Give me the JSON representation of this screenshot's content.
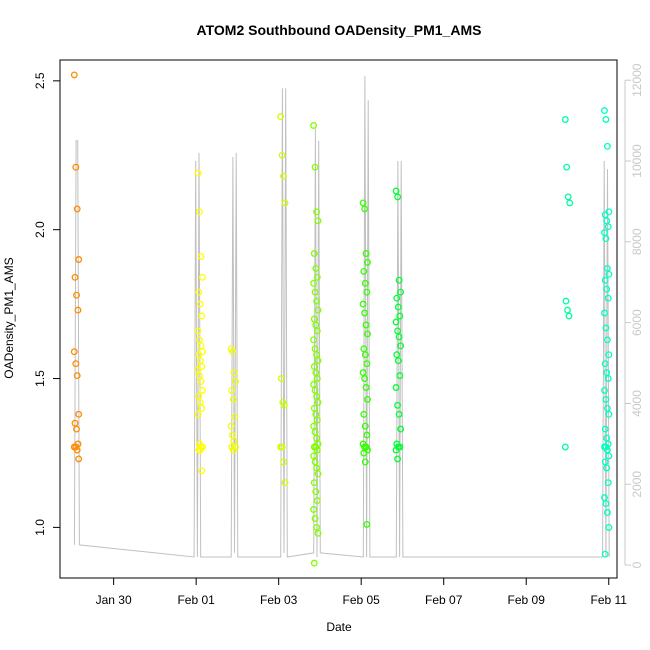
{
  "chart_data": {
    "type": "scatter",
    "title": "ATOM2 Southbound OADensity_PM1_AMS",
    "xlabel": "Date",
    "ylabel": "OADensity_PM1_AMS",
    "x_range_days": [
      28.7,
      42.2
    ],
    "x_axis_origin": "2017-01-01",
    "x_ticks": [
      {
        "day": 30,
        "label": "Jan 30"
      },
      {
        "day": 32,
        "label": "Feb 01"
      },
      {
        "day": 34,
        "label": "Feb 03"
      },
      {
        "day": 36,
        "label": "Feb 05"
      },
      {
        "day": 38,
        "label": "Feb 07"
      },
      {
        "day": 40,
        "label": "Feb 09"
      },
      {
        "day": 42,
        "label": "Feb 11"
      }
    ],
    "ylim": [
      0.83,
      2.57
    ],
    "y_ticks": [
      {
        "value": 1.0,
        "label": "1.0"
      },
      {
        "value": 1.5,
        "label": "1.5"
      },
      {
        "value": 2.0,
        "label": "2.0"
      },
      {
        "value": 2.5,
        "label": "2.5"
      }
    ],
    "y2lim": [
      -320,
      12500
    ],
    "y2_ticks": [
      {
        "value": 0,
        "label": "0"
      },
      {
        "value": 2000,
        "label": "2000"
      },
      {
        "value": 4000,
        "label": "4000"
      },
      {
        "value": 6000,
        "label": "6000"
      },
      {
        "value": 8000,
        "label": "8000"
      },
      {
        "value": 10000,
        "label": "10000"
      },
      {
        "value": 12000,
        "label": "12000"
      }
    ],
    "grid": false,
    "points": [
      {
        "x": 29.1,
        "ys": [
          2.52,
          2.21,
          2.07,
          1.9,
          1.84,
          1.78,
          1.73,
          1.59,
          1.55,
          1.51,
          1.38,
          1.35,
          1.33,
          1.28,
          1.27,
          1.27,
          1.26,
          1.23
        ],
        "color": "#ff8c00"
      },
      {
        "x": 32.1,
        "ys": [
          2.19,
          2.06,
          1.91,
          1.84,
          1.79,
          1.75,
          1.71,
          1.66,
          1.63,
          1.61,
          1.59,
          1.58,
          1.56,
          1.54,
          1.53,
          1.51,
          1.49,
          1.46,
          1.44,
          1.42,
          1.4,
          1.38,
          1.28,
          1.27,
          1.27,
          1.26,
          1.26,
          1.19
        ],
        "color": "#ffff00"
      },
      {
        "x": 32.9,
        "ys": [
          1.6,
          1.59,
          1.52,
          1.49,
          1.46,
          1.43,
          1.37,
          1.34,
          1.31,
          1.29,
          1.27,
          1.27,
          1.26
        ],
        "color": "#f0ff00"
      },
      {
        "x": 34.1,
        "ys": [
          2.38,
          2.25,
          2.18,
          2.09,
          1.5,
          1.42,
          1.41,
          1.27,
          1.27,
          1.22,
          1.15
        ],
        "color": "#ccff00"
      },
      {
        "x": 34.9,
        "ys": [
          2.35,
          2.21,
          2.06,
          2.03,
          1.92,
          1.87,
          1.84,
          1.82,
          1.79,
          1.76,
          1.73,
          1.7,
          1.68,
          1.66,
          1.63,
          1.6,
          1.58,
          1.56,
          1.54,
          1.52,
          1.5,
          1.48,
          1.46,
          1.44,
          1.42,
          1.4,
          1.38,
          1.36,
          1.34,
          1.32,
          1.3,
          1.28,
          1.27,
          1.27,
          1.26,
          1.24,
          1.22,
          1.2,
          1.18,
          1.15,
          1.12,
          1.09,
          1.06,
          1.03,
          1.0,
          0.98,
          0.88
        ],
        "color": "#80ff00"
      },
      {
        "x": 36.1,
        "ys": [
          2.09,
          2.07,
          1.92,
          1.89,
          1.86,
          1.82,
          1.79,
          1.75,
          1.72,
          1.68,
          1.65,
          1.6,
          1.58,
          1.55,
          1.52,
          1.5,
          1.47,
          1.43,
          1.38,
          1.34,
          1.31,
          1.28,
          1.27,
          1.27,
          1.26,
          1.25,
          1.22,
          1.01
        ],
        "color": "#33ff00"
      },
      {
        "x": 36.9,
        "ys": [
          2.13,
          2.11,
          1.83,
          1.79,
          1.77,
          1.74,
          1.71,
          1.69,
          1.66,
          1.64,
          1.61,
          1.58,
          1.56,
          1.51,
          1.47,
          1.41,
          1.38,
          1.33,
          1.28,
          1.27,
          1.27,
          1.26,
          1.23
        ],
        "color": "#00ff33"
      },
      {
        "x": 41.0,
        "ys": [
          2.37,
          2.21,
          2.11,
          2.09,
          1.76,
          1.73,
          1.71,
          1.27
        ],
        "color": "#00ffa0"
      },
      {
        "x": 41.95,
        "ys": [
          2.4,
          2.37,
          2.28,
          2.06,
          2.05,
          2.03,
          2.01,
          1.99,
          1.97,
          1.87,
          1.85,
          1.83,
          1.8,
          1.77,
          1.72,
          1.67,
          1.63,
          1.58,
          1.55,
          1.52,
          1.5,
          1.46,
          1.43,
          1.4,
          1.38,
          1.33,
          1.3,
          1.28,
          1.27,
          1.27,
          1.26,
          1.24,
          1.22,
          1.2,
          1.15,
          1.1,
          1.08,
          1.05,
          1.0,
          0.91
        ],
        "color": "#00ffc0"
      }
    ],
    "line_color": "#c0c0c0"
  }
}
